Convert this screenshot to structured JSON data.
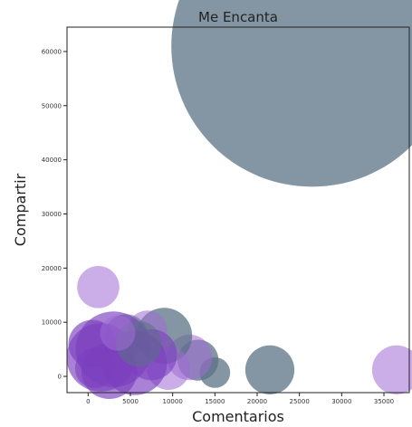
{
  "chart_data": {
    "type": "scatter",
    "title": "Me Encanta",
    "xlabel": "Comentarios",
    "ylabel": "Compartir",
    "xlim": [
      -2500,
      38000
    ],
    "ylim": [
      -3000,
      64500
    ],
    "xticks": [
      0,
      5000,
      10000,
      15000,
      20000,
      25000,
      30000,
      35000
    ],
    "yticks": [
      0,
      10000,
      20000,
      30000,
      40000,
      50000,
      60000
    ],
    "grid": false,
    "colors": {
      "slate": "#5b7186",
      "purple": "#a06cd5",
      "violet": "#7b3fbf"
    },
    "points": [
      {
        "x": 26500,
        "y": 61000,
        "size": 76000,
        "color": "slate",
        "opacity": 0.75
      },
      {
        "x": 21500,
        "y": 1200,
        "size": 2300,
        "color": "slate",
        "opacity": 0.75
      },
      {
        "x": 36500,
        "y": 1200,
        "size": 2300,
        "color": "purple",
        "opacity": 0.55
      },
      {
        "x": 1200,
        "y": 16500,
        "size": 1700,
        "color": "purple",
        "opacity": 0.55
      },
      {
        "x": 15000,
        "y": 700,
        "size": 900,
        "color": "slate",
        "opacity": 0.75
      },
      {
        "x": 13000,
        "y": 3000,
        "size": 1600,
        "color": "slate",
        "opacity": 0.75
      },
      {
        "x": 12000,
        "y": 3500,
        "size": 2000,
        "color": "purple",
        "opacity": 0.55
      },
      {
        "x": 9000,
        "y": 7500,
        "size": 3000,
        "color": "slate",
        "opacity": 0.75
      },
      {
        "x": 9500,
        "y": 1500,
        "size": 1800,
        "color": "purple",
        "opacity": 0.55
      },
      {
        "x": 7000,
        "y": 8500,
        "size": 1500,
        "color": "purple",
        "opacity": 0.55
      },
      {
        "x": 4500,
        "y": 7500,
        "size": 1800,
        "color": "slate",
        "opacity": 0.6
      },
      {
        "x": 3000,
        "y": 5000,
        "size": 5500,
        "color": "violet",
        "opacity": 0.65
      },
      {
        "x": 1500,
        "y": 3500,
        "size": 4500,
        "color": "violet",
        "opacity": 0.65
      },
      {
        "x": 5500,
        "y": 2500,
        "size": 4000,
        "color": "violet",
        "opacity": 0.65
      },
      {
        "x": 500,
        "y": 6000,
        "size": 2200,
        "color": "violet",
        "opacity": 0.65
      },
      {
        "x": 7500,
        "y": 4000,
        "size": 2500,
        "color": "violet",
        "opacity": 0.6
      },
      {
        "x": 2500,
        "y": 1000,
        "size": 3000,
        "color": "violet",
        "opacity": 0.65
      },
      {
        "x": 800,
        "y": 1500,
        "size": 1500,
        "color": "violet",
        "opacity": 0.6
      },
      {
        "x": 6000,
        "y": 6000,
        "size": 2000,
        "color": "slate",
        "opacity": 0.55
      },
      {
        "x": 3500,
        "y": 8000,
        "size": 1200,
        "color": "purple",
        "opacity": 0.55
      }
    ]
  }
}
